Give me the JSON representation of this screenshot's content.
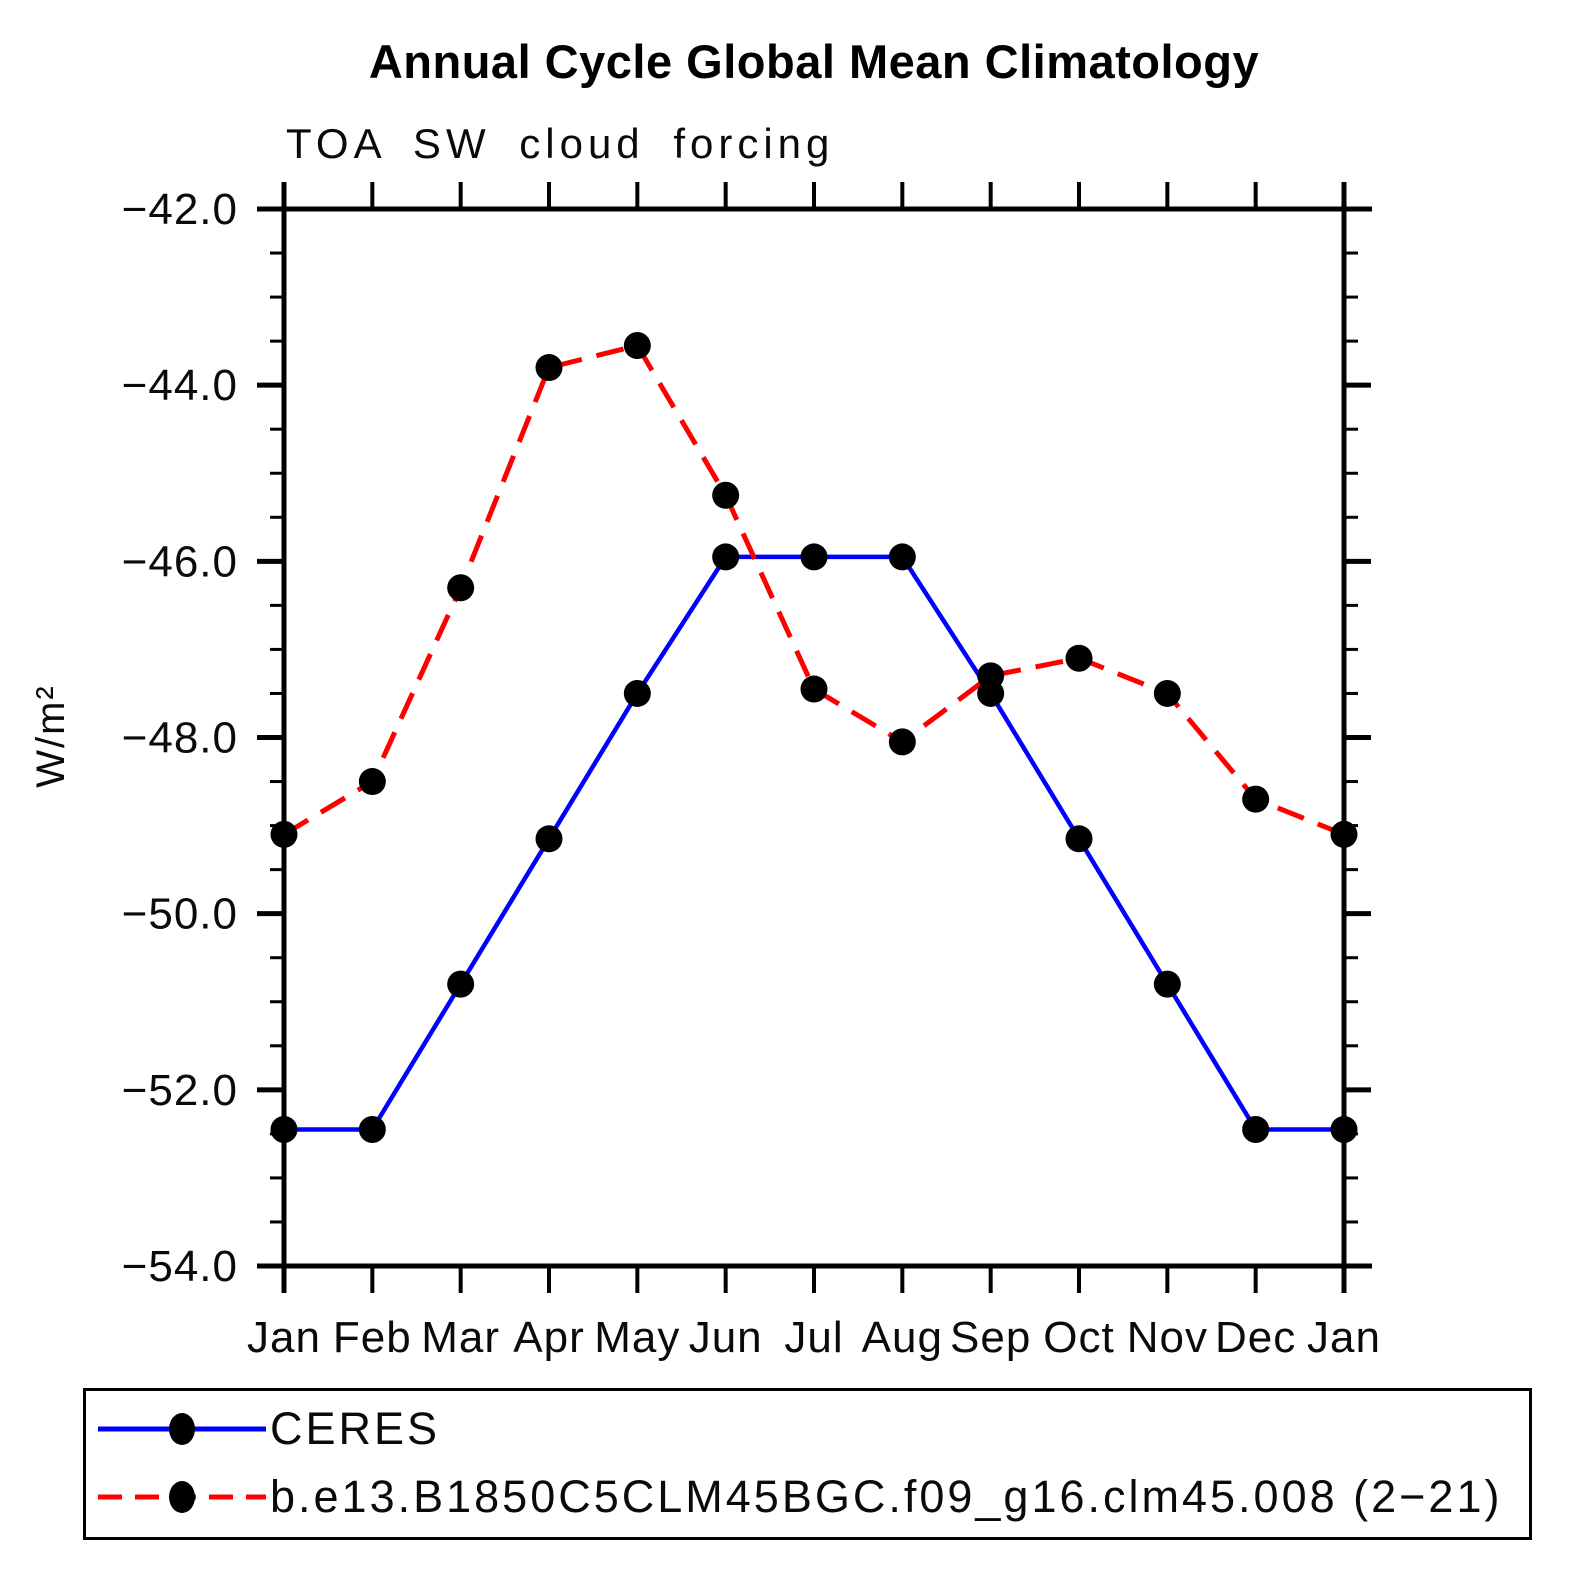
{
  "title": "Annual Cycle Global Mean Climatology",
  "subtitle": "TOA SW cloud forcing",
  "y_axis": {
    "label": "W/m²",
    "tick_labels": [
      "−42.0",
      "−44.0",
      "−46.0",
      "−48.0",
      "−50.0",
      "−52.0",
      "−54.0"
    ],
    "major_step": 2.0,
    "minor_step": 0.5
  },
  "x_axis": {
    "tick_labels": [
      "Jan",
      "Feb",
      "Mar",
      "Apr",
      "May",
      "Jun",
      "Jul",
      "Aug",
      "Sep",
      "Oct",
      "Nov",
      "Dec",
      "Jan"
    ]
  },
  "colors": {
    "axis": "#000000",
    "marker": "#000000",
    "ceres": "#0000ff",
    "model": "#ff0000"
  },
  "chart_data": {
    "type": "line",
    "title": "Annual Cycle Global Mean Climatology",
    "subtitle": "TOA SW cloud forcing",
    "ylabel": "W/m²",
    "xlabel": "",
    "ylim": [
      -54.0,
      -42.0
    ],
    "grid": false,
    "legend_position": "bottom",
    "categories": [
      "Jan",
      "Feb",
      "Mar",
      "Apr",
      "May",
      "Jun",
      "Jul",
      "Aug",
      "Sep",
      "Oct",
      "Nov",
      "Dec",
      "Jan"
    ],
    "series": [
      {
        "name": "CERES",
        "color": "#0000ff",
        "style": "solid",
        "marker": "circle",
        "values": [
          -52.45,
          -52.45,
          -50.8,
          -49.15,
          -47.5,
          -45.95,
          -45.95,
          -45.95,
          -47.5,
          -49.15,
          -50.8,
          -52.45,
          -52.45
        ]
      },
      {
        "name": "b.e13.B1850C5CLM45BGC.f09_g16.clm45.008 (2−21)",
        "color": "#ff0000",
        "style": "dashed",
        "marker": "circle",
        "values": [
          -49.1,
          -48.5,
          -46.3,
          -43.8,
          -43.55,
          -45.25,
          -47.45,
          -48.05,
          -47.3,
          -47.1,
          -47.5,
          -48.7,
          -49.1
        ]
      }
    ]
  }
}
